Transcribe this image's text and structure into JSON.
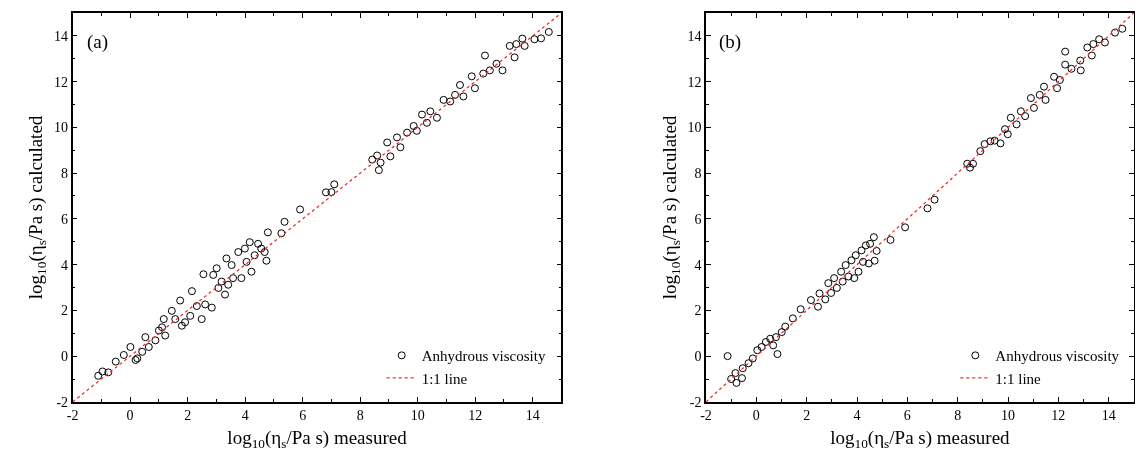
{
  "chart_data": [
    {
      "type": "scatter",
      "xlabel": "log$_{10}$(η$_{s}$/Pa s) measured",
      "ylabel": "log$_{10}$(η$_{s}$/Pa s) calculated",
      "annotations": [
        "(a)"
      ],
      "xlim": [
        -2,
        15
      ],
      "ylim": [
        -2,
        15
      ],
      "xticks": [
        -2,
        0,
        2,
        4,
        6,
        8,
        10,
        12,
        14
      ],
      "yticks": [
        -2,
        0,
        2,
        4,
        6,
        8,
        10,
        12,
        14
      ],
      "grid": false,
      "legend": "bottom right",
      "series": [
        {
          "name": "Anhydrous viscosity",
          "marker": "circle",
          "color": "#000000",
          "x": [
            -1.11,
            -0.96,
            -0.76,
            -0.5,
            -0.22,
            0.01,
            0.19,
            0.25,
            0.42,
            0.53,
            0.65,
            0.88,
            1.0,
            1.11,
            1.17,
            1.22,
            1.45,
            1.57,
            1.74,
            1.8,
            1.91,
            2.09,
            2.15,
            2.32,
            2.49,
            2.55,
            2.61,
            2.84,
            2.89,
            3.01,
            3.07,
            3.18,
            3.3,
            3.35,
            3.41,
            3.53,
            3.58,
            3.76,
            3.87,
            3.99,
            4.05,
            4.16,
            4.22,
            4.33,
            4.45,
            4.56,
            4.68,
            4.74,
            4.79,
            5.26,
            5.37,
            5.91,
            6.81,
            7.1,
            7.0,
            8.42,
            8.59,
            8.65,
            8.71,
            8.94,
            9.05,
            9.28,
            9.4,
            9.63,
            9.86,
            9.97,
            10.15,
            10.32,
            10.44,
            10.67,
            10.9,
            11.13,
            11.3,
            11.47,
            11.59,
            11.88,
            11.99,
            12.28,
            12.34,
            12.51,
            12.74,
            12.95,
            13.2,
            13.37,
            13.43,
            13.64,
            13.72,
            14.06,
            14.29,
            14.56
          ],
          "values": [
            -0.86,
            -0.67,
            -0.71,
            -0.24,
            0.05,
            0.4,
            -0.17,
            -0.1,
            0.19,
            0.83,
            0.4,
            0.69,
            1.12,
            1.26,
            1.62,
            0.9,
            1.98,
            1.62,
            2.43,
            1.33,
            1.48,
            1.76,
            2.84,
            2.19,
            1.62,
            3.58,
            2.26,
            2.12,
            3.55,
            3.84,
            2.98,
            3.26,
            2.69,
            4.27,
            3.12,
            3.98,
            3.41,
            4.55,
            3.41,
            4.7,
            4.12,
            4.98,
            3.69,
            4.41,
            4.91,
            4.7,
            4.55,
            4.17,
            5.41,
            5.37,
            5.87,
            6.41,
            7.16,
            7.51,
            7.17,
            8.59,
            8.77,
            8.13,
            8.46,
            9.34,
            8.73,
            9.56,
            9.13,
            9.77,
            10.06,
            9.85,
            10.56,
            10.2,
            10.7,
            10.42,
            11.2,
            11.13,
            11.42,
            11.85,
            11.35,
            12.23,
            11.71,
            12.35,
            13.14,
            12.49,
            12.78,
            12.49,
            13.56,
            13.06,
            13.64,
            13.88,
            13.56,
            13.85,
            13.89,
            14.17
          ]
        },
        {
          "name": "1:1 line",
          "type": "line",
          "color": "#e8322a",
          "line_style": "dotted",
          "x": [
            -2,
            15
          ],
          "values": [
            -2,
            15
          ]
        }
      ]
    },
    {
      "type": "scatter",
      "xlabel": "log$_{10}$(η$_{s}$/Pa s) measured",
      "ylabel": "log$_{10}$(η$_{s}$/Pa s) calculated",
      "annotations": [
        "(b)"
      ],
      "xlim": [
        -2,
        15
      ],
      "ylim": [
        -2,
        15
      ],
      "xticks": [
        -2,
        0,
        2,
        4,
        6,
        8,
        10,
        12,
        14
      ],
      "yticks": [
        -2,
        0,
        2,
        4,
        6,
        8,
        10,
        12,
        14
      ],
      "grid": false,
      "legend": "bottom right",
      "series": [
        {
          "name": "Anhydrous viscosity",
          "marker": "circle",
          "color": "#000000",
          "x": [
            -1.14,
            -1.0,
            -0.79,
            -0.83,
            -0.54,
            -0.57,
            -0.31,
            -0.14,
            0.04,
            0.21,
            0.38,
            0.55,
            0.67,
            0.84,
            0.78,
            1.01,
            1.15,
            1.45,
            1.76,
            2.17,
            2.45,
            2.51,
            2.74,
            2.86,
            2.97,
            3.09,
            3.2,
            3.37,
            3.43,
            3.55,
            3.66,
            3.78,
            3.89,
            3.95,
            4.06,
            4.18,
            4.24,
            4.35,
            4.47,
            4.52,
            4.7,
            4.67,
            4.78,
            5.33,
            5.91,
            6.8,
            7.08,
            8.38,
            8.49,
            8.61,
            8.9,
            9.07,
            9.3,
            9.47,
            9.7,
            9.88,
            9.99,
            10.11,
            10.34,
            10.51,
            10.68,
            10.91,
            11.03,
            11.26,
            11.43,
            11.49,
            11.83,
            11.95,
            12.06,
            12.27,
            12.27,
            12.52,
            12.87,
            12.89,
            13.15,
            13.33,
            13.39,
            13.62,
            13.85,
            14.25,
            14.54
          ],
          "values": [
            0.0,
            -1.0,
            -1.17,
            -0.74,
            -0.53,
            -0.96,
            -0.31,
            -0.1,
            0.26,
            0.4,
            0.62,
            0.76,
            0.47,
            0.09,
            0.83,
            1.05,
            1.29,
            1.65,
            2.05,
            2.45,
            2.16,
            2.74,
            2.48,
            3.19,
            2.76,
            3.41,
            2.98,
            3.69,
            3.26,
            3.98,
            3.48,
            4.19,
            3.41,
            4.41,
            3.69,
            4.62,
            4.12,
            4.84,
            4.05,
            4.91,
            4.17,
            5.2,
            4.6,
            5.08,
            5.63,
            6.46,
            6.84,
            8.41,
            8.24,
            8.41,
            8.96,
            9.27,
            9.39,
            9.42,
            9.3,
            9.92,
            9.7,
            10.42,
            10.13,
            10.7,
            10.49,
            11.28,
            10.85,
            11.42,
            11.78,
            11.2,
            12.21,
            11.71,
            12.07,
            13.31,
            12.74,
            12.56,
            12.92,
            12.49,
            13.49,
            13.14,
            13.64,
            13.85,
            13.71,
            14.14,
            14.31
          ]
        },
        {
          "name": "1:1 line",
          "type": "line",
          "color": "#e8322a",
          "line_style": "dotted",
          "x": [
            -2,
            15
          ],
          "values": [
            -2,
            15
          ]
        }
      ]
    }
  ]
}
